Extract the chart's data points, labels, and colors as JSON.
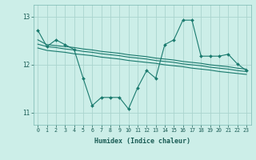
{
  "xlabel": "Humidex (Indice chaleur)",
  "bg_color": "#cceee8",
  "grid_color": "#aad4ce",
  "line_color": "#1a7a6e",
  "x_values": [
    0,
    1,
    2,
    3,
    4,
    5,
    6,
    7,
    8,
    9,
    10,
    11,
    12,
    13,
    14,
    15,
    16,
    17,
    18,
    19,
    20,
    21,
    22,
    23
  ],
  "main_y": [
    12.72,
    12.38,
    12.52,
    12.42,
    12.32,
    11.72,
    11.15,
    11.32,
    11.32,
    11.32,
    11.08,
    11.52,
    11.88,
    11.72,
    12.42,
    12.52,
    12.93,
    12.93,
    12.18,
    12.18,
    12.18,
    12.22,
    12.02,
    11.88
  ],
  "smooth1_y": [
    12.52,
    12.42,
    12.4,
    12.38,
    12.36,
    12.33,
    12.31,
    12.28,
    12.26,
    12.24,
    12.21,
    12.19,
    12.17,
    12.14,
    12.12,
    12.1,
    12.07,
    12.05,
    12.03,
    12.0,
    11.98,
    11.96,
    11.93,
    11.91
  ],
  "smooth2_y": [
    12.43,
    12.38,
    12.36,
    12.33,
    12.31,
    12.28,
    12.26,
    12.23,
    12.21,
    12.19,
    12.16,
    12.14,
    12.12,
    12.09,
    12.07,
    12.05,
    12.02,
    12.0,
    11.98,
    11.95,
    11.93,
    11.91,
    11.88,
    11.86
  ],
  "smooth3_y": [
    12.35,
    12.3,
    12.28,
    12.26,
    12.23,
    12.21,
    12.19,
    12.16,
    12.14,
    12.12,
    12.09,
    12.07,
    12.05,
    12.03,
    12.0,
    11.98,
    11.96,
    11.93,
    11.91,
    11.89,
    11.86,
    11.84,
    11.82,
    11.8
  ],
  "ylim": [
    10.75,
    13.25
  ],
  "yticks": [
    11,
    12,
    13
  ],
  "xticks": [
    0,
    1,
    2,
    3,
    4,
    5,
    6,
    7,
    8,
    9,
    10,
    11,
    12,
    13,
    14,
    15,
    16,
    17,
    18,
    19,
    20,
    21,
    22,
    23
  ]
}
